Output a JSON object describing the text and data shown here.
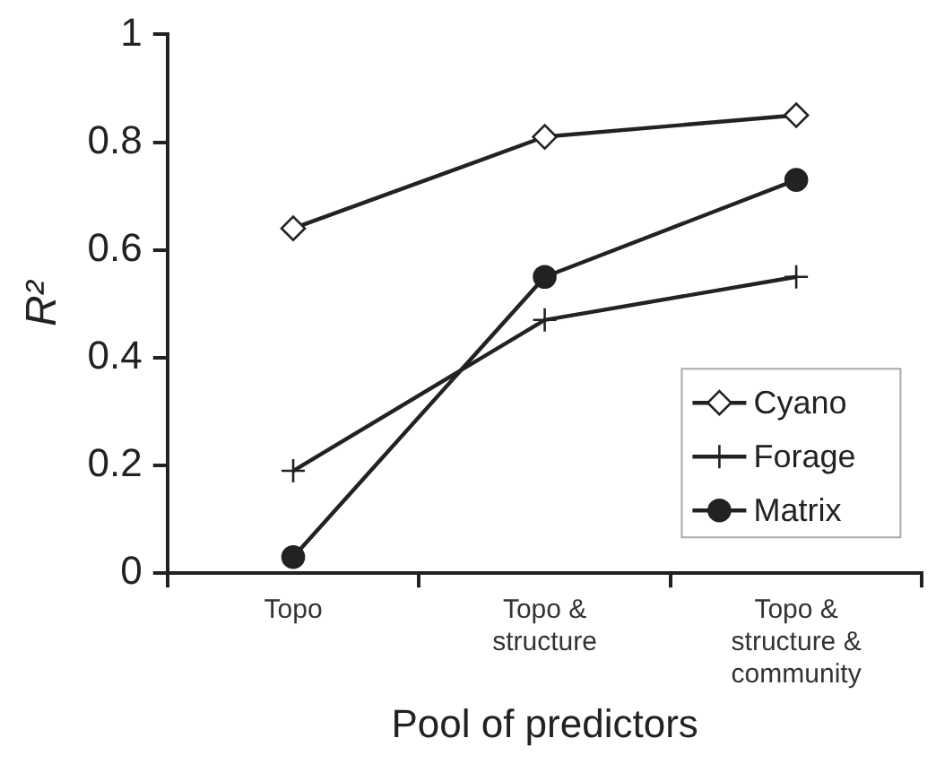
{
  "chart_data": {
    "type": "line",
    "xlabel": "Pool of predictors",
    "ylabel": "R²",
    "categories": [
      "Topo",
      "Topo & structure",
      "Topo & structure & community"
    ],
    "series": [
      {
        "name": "Cyano",
        "color": "#222222",
        "marker": "diamond",
        "values": [
          0.64,
          0.81,
          0.85
        ]
      },
      {
        "name": "Forage",
        "color": "#222222",
        "marker": "cross",
        "values": [
          0.19,
          0.47,
          0.55
        ]
      },
      {
        "name": "Matrix",
        "color": "#222222",
        "marker": "circle",
        "values": [
          0.03,
          0.55,
          0.73
        ]
      }
    ],
    "ylim": [
      0,
      1
    ],
    "yticks": [
      0,
      0.2,
      0.4,
      0.6,
      0.8,
      1
    ],
    "grid": false,
    "legend": "bottom right"
  }
}
